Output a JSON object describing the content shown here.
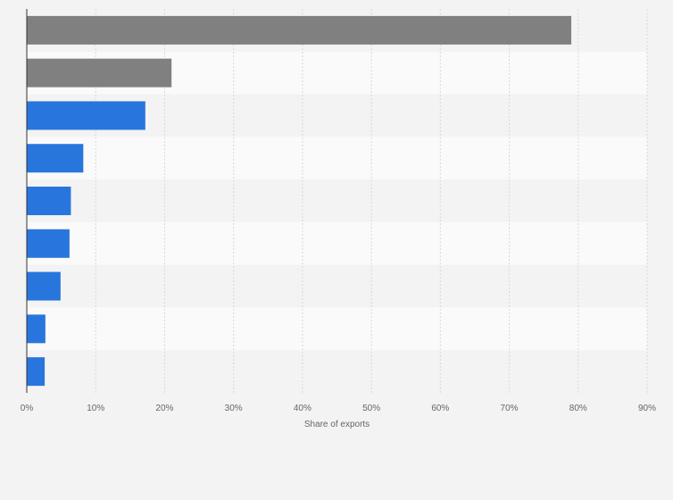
{
  "chart_data": {
    "type": "bar",
    "orientation": "horizontal",
    "title": "",
    "xlabel": "Share of exports",
    "ylabel": "",
    "xlim": [
      0,
      90
    ],
    "x_ticks": [
      "0%",
      "10%",
      "20%",
      "30%",
      "40%",
      "50%",
      "60%",
      "70%",
      "80%",
      "90%"
    ],
    "grid": true,
    "legend": "none",
    "categories": [
      "",
      "",
      "",
      "",
      "",
      "",
      "",
      "",
      ""
    ],
    "values": [
      79,
      21,
      17.2,
      8.2,
      6.4,
      6.2,
      4.9,
      2.7,
      2.6
    ],
    "bar_colors": [
      "#808080",
      "#808080",
      "#2876dd",
      "#2876dd",
      "#2876dd",
      "#2876dd",
      "#2876dd",
      "#2876dd",
      "#2876dd"
    ],
    "value_suffix": "%"
  },
  "colors": {
    "background": "#f3f3f3",
    "band_light": "#fafafa",
    "band_dark": "#f3f3f3",
    "gridline": "#d8d8d8",
    "axis": "#333333",
    "tick_text": "#666666",
    "highlight_bar": "#808080",
    "bar": "#2876dd"
  }
}
